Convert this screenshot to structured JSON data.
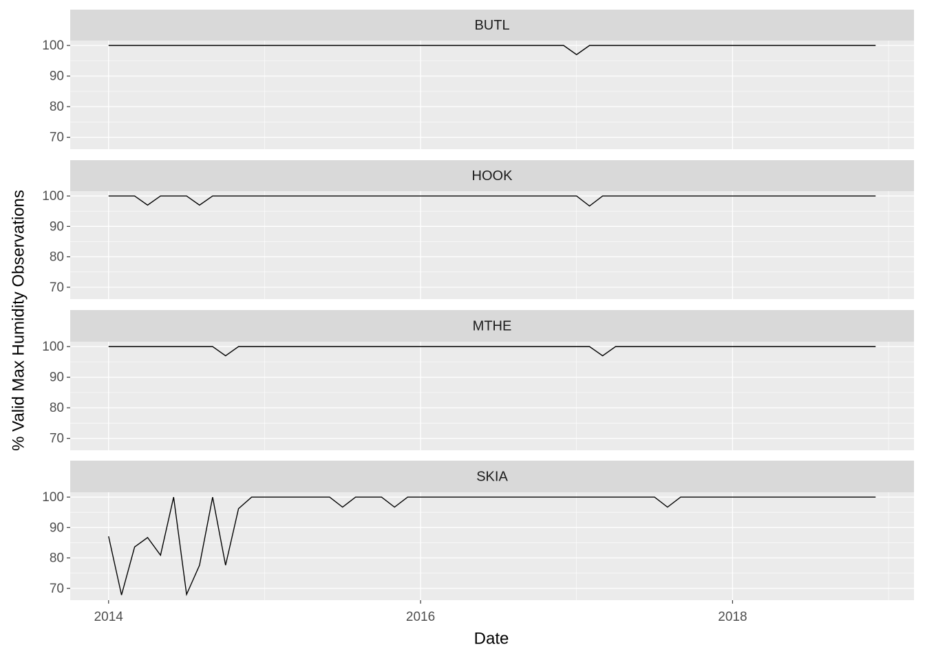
{
  "chart_data": {
    "type": "line",
    "x_label": "Date",
    "y_label": "% Valid Max Humidity Observations",
    "facets": true,
    "grid": true,
    "xlim": [
      2013.754,
      2019.163
    ],
    "xticks": [
      2014,
      2016,
      2018
    ],
    "ylim": [
      66.1,
      101.6
    ],
    "yticks": [
      70,
      80,
      90,
      100
    ],
    "x": [
      2014,
      2014.083,
      2014.167,
      2014.25,
      2014.333,
      2014.417,
      2014.5,
      2014.583,
      2014.667,
      2014.75,
      2014.833,
      2014.917,
      2015,
      2015.083,
      2015.167,
      2015.25,
      2015.333,
      2015.417,
      2015.5,
      2015.583,
      2015.667,
      2015.75,
      2015.833,
      2015.917,
      2016,
      2016.083,
      2016.167,
      2016.25,
      2016.333,
      2016.417,
      2016.5,
      2016.583,
      2016.667,
      2016.75,
      2016.833,
      2016.917,
      2017,
      2017.083,
      2017.167,
      2017.25,
      2017.333,
      2017.417,
      2017.5,
      2017.583,
      2017.667,
      2017.75,
      2017.833,
      2017.917,
      2018,
      2018.083,
      2018.167,
      2018.25,
      2018.333,
      2018.417,
      2018.5,
      2018.583,
      2018.667,
      2018.75,
      2018.833,
      2018.917
    ],
    "series": [
      {
        "name": "BUTL",
        "color": "#000000",
        "values": [
          100,
          100,
          100,
          100,
          100,
          100,
          100,
          100,
          100,
          100,
          100,
          100,
          100,
          100,
          100,
          100,
          100,
          100,
          100,
          100,
          100,
          100,
          100,
          100,
          100,
          100,
          100,
          100,
          100,
          100,
          100,
          100,
          100,
          100,
          100,
          100,
          97,
          100,
          100,
          100,
          100,
          100,
          100,
          100,
          100,
          100,
          100,
          100,
          100,
          100,
          100,
          100,
          100,
          100,
          100,
          100,
          100,
          100,
          100,
          100
        ]
      },
      {
        "name": "HOOK",
        "color": "#000000",
        "values": [
          100,
          100,
          100,
          97,
          100,
          100,
          100,
          97,
          100,
          100,
          100,
          100,
          100,
          100,
          100,
          100,
          100,
          100,
          100,
          100,
          100,
          100,
          100,
          100,
          100,
          100,
          100,
          100,
          100,
          100,
          100,
          100,
          100,
          100,
          100,
          100,
          100,
          96.7,
          100,
          100,
          100,
          100,
          100,
          100,
          100,
          100,
          100,
          100,
          100,
          100,
          100,
          100,
          100,
          100,
          100,
          100,
          100,
          100,
          100,
          100
        ]
      },
      {
        "name": "MTHE",
        "color": "#000000",
        "values": [
          100,
          100,
          100,
          100,
          100,
          100,
          100,
          100,
          100,
          97,
          100,
          100,
          100,
          100,
          100,
          100,
          100,
          100,
          100,
          100,
          100,
          100,
          100,
          100,
          100,
          100,
          100,
          100,
          100,
          100,
          100,
          100,
          100,
          100,
          100,
          100,
          100,
          100,
          97,
          100,
          100,
          100,
          100,
          100,
          100,
          100,
          100,
          100,
          100,
          100,
          100,
          100,
          100,
          100,
          100,
          100,
          100,
          100,
          100,
          100
        ]
      },
      {
        "name": "SKIA",
        "color": "#000000",
        "values": [
          87.1,
          67.8,
          83.6,
          86.7,
          80.9,
          100,
          68,
          77.6,
          100,
          77.6,
          96.2,
          100,
          100,
          100,
          100,
          100,
          100,
          100,
          96.7,
          100,
          100,
          100,
          96.7,
          100,
          100,
          100,
          100,
          100,
          100,
          100,
          100,
          100,
          100,
          100,
          100,
          100,
          100,
          100,
          100,
          100,
          100,
          100,
          100,
          96.7,
          100,
          100,
          100,
          100,
          100,
          100,
          100,
          100,
          100,
          100,
          100,
          100,
          100,
          100,
          100,
          100
        ]
      }
    ]
  }
}
